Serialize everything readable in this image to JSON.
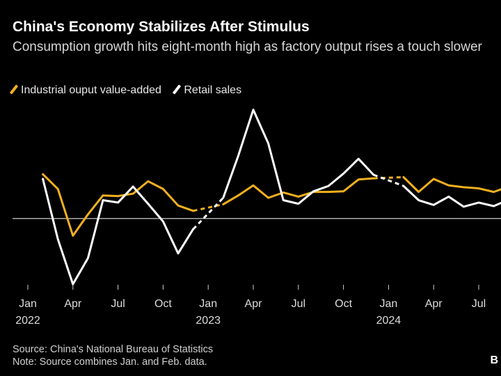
{
  "header": {
    "title": "China's Economy Stabilizes After Stimulus",
    "subtitle": "Consumption growth hits eight-month high as factory output rises a touch slower"
  },
  "legend": {
    "items": [
      {
        "label": "Industrial ouput value-added",
        "color": "#f2b01e"
      },
      {
        "label": "Retail sales",
        "color": "#ffffff"
      }
    ]
  },
  "footer": {
    "source": "Source: China's National Bureau of Statistics",
    "note": "Note: Source combines Jan. and Feb. data."
  },
  "brand": {
    "logo_text": "B"
  },
  "colors": {
    "background": "#000000",
    "industrial": "#f2b01e",
    "retail": "#ffffff",
    "zero_line": "#ffffff"
  },
  "chart_data": {
    "type": "line",
    "title": "China's Economy Stabilizes After Stimulus",
    "xlabel": "",
    "ylabel": "",
    "ylim": [
      -12.5,
      20
    ],
    "zero_line": true,
    "grid": false,
    "x_ticks": [
      {
        "month_index": 0,
        "label": "Jan",
        "year": "2022"
      },
      {
        "month_index": 3,
        "label": "Apr",
        "year": ""
      },
      {
        "month_index": 6,
        "label": "Jul",
        "year": ""
      },
      {
        "month_index": 9,
        "label": "Oct",
        "year": ""
      },
      {
        "month_index": 12,
        "label": "Jan",
        "year": "2023"
      },
      {
        "month_index": 15,
        "label": "Apr",
        "year": ""
      },
      {
        "month_index": 18,
        "label": "Jul",
        "year": ""
      },
      {
        "month_index": 21,
        "label": "Oct",
        "year": ""
      },
      {
        "month_index": 24,
        "label": "Jan",
        "year": "2024"
      },
      {
        "month_index": 27,
        "label": "Apr",
        "year": ""
      },
      {
        "month_index": 30,
        "label": "Jul",
        "year": ""
      }
    ],
    "series": [
      {
        "name": "Industrial ouput value-added",
        "color": "#f2b01e",
        "points": [
          {
            "month_index": 1,
            "value": 7.5
          },
          {
            "month_index": 2,
            "value": 5.0
          },
          {
            "month_index": 3,
            "value": -2.9
          },
          {
            "month_index": 4,
            "value": 0.7
          },
          {
            "month_index": 5,
            "value": 3.9
          },
          {
            "month_index": 6,
            "value": 3.8
          },
          {
            "month_index": 7,
            "value": 4.2
          },
          {
            "month_index": 8,
            "value": 6.3
          },
          {
            "month_index": 9,
            "value": 5.0
          },
          {
            "month_index": 10,
            "value": 2.2
          },
          {
            "month_index": 11,
            "value": 1.3
          },
          {
            "month_index": 13,
            "value": 2.4
          },
          {
            "month_index": 14,
            "value": 3.9
          },
          {
            "month_index": 15,
            "value": 5.6
          },
          {
            "month_index": 16,
            "value": 3.5
          },
          {
            "month_index": 17,
            "value": 4.4
          },
          {
            "month_index": 18,
            "value": 3.7
          },
          {
            "month_index": 19,
            "value": 4.5
          },
          {
            "month_index": 20,
            "value": 4.5
          },
          {
            "month_index": 21,
            "value": 4.6
          },
          {
            "month_index": 22,
            "value": 6.6
          },
          {
            "month_index": 23,
            "value": 6.8
          },
          {
            "month_index": 25,
            "value": 7.0
          },
          {
            "month_index": 26,
            "value": 4.5
          },
          {
            "month_index": 27,
            "value": 6.7
          },
          {
            "month_index": 28,
            "value": 5.6
          },
          {
            "month_index": 29,
            "value": 5.3
          },
          {
            "month_index": 30,
            "value": 5.1
          },
          {
            "month_index": 31,
            "value": 4.5
          },
          {
            "month_index": 32,
            "value": 5.4
          }
        ],
        "dashed_gaps": [
          [
            11,
            13
          ],
          [
            23,
            25
          ]
        ]
      },
      {
        "name": "Retail sales",
        "color": "#ffffff",
        "points": [
          {
            "month_index": 1,
            "value": 6.7
          },
          {
            "month_index": 2,
            "value": -3.5
          },
          {
            "month_index": 3,
            "value": -11.1
          },
          {
            "month_index": 4,
            "value": -6.7
          },
          {
            "month_index": 5,
            "value": 3.1
          },
          {
            "month_index": 6,
            "value": 2.7
          },
          {
            "month_index": 7,
            "value": 5.4
          },
          {
            "month_index": 8,
            "value": 2.5
          },
          {
            "month_index": 9,
            "value": -0.5
          },
          {
            "month_index": 10,
            "value": -5.9
          },
          {
            "month_index": 11,
            "value": -1.8
          },
          {
            "month_index": 13,
            "value": 3.5
          },
          {
            "month_index": 14,
            "value": 10.6
          },
          {
            "month_index": 15,
            "value": 18.4
          },
          {
            "month_index": 16,
            "value": 12.7
          },
          {
            "month_index": 17,
            "value": 3.1
          },
          {
            "month_index": 18,
            "value": 2.5
          },
          {
            "month_index": 19,
            "value": 4.6
          },
          {
            "month_index": 20,
            "value": 5.5
          },
          {
            "month_index": 21,
            "value": 7.6
          },
          {
            "month_index": 22,
            "value": 10.1
          },
          {
            "month_index": 23,
            "value": 7.4
          },
          {
            "month_index": 25,
            "value": 5.5
          },
          {
            "month_index": 26,
            "value": 3.1
          },
          {
            "month_index": 27,
            "value": 2.3
          },
          {
            "month_index": 28,
            "value": 3.7
          },
          {
            "month_index": 29,
            "value": 2.0
          },
          {
            "month_index": 30,
            "value": 2.7
          },
          {
            "month_index": 31,
            "value": 2.1
          },
          {
            "month_index": 32,
            "value": 3.2
          }
        ],
        "dashed_gaps": [
          [
            11,
            13
          ],
          [
            23,
            25
          ]
        ]
      }
    ]
  }
}
